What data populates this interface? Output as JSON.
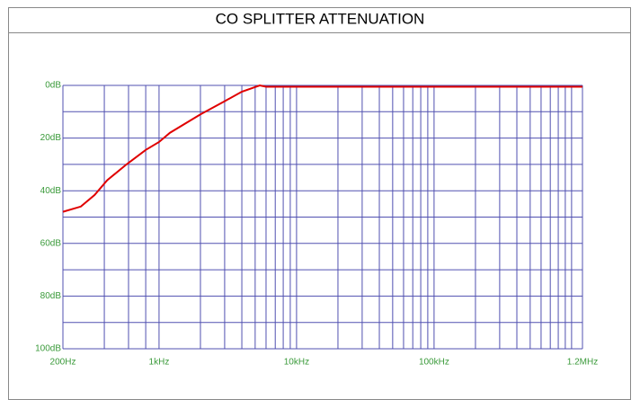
{
  "chart_data": {
    "type": "line",
    "title": "CO SPLITTER ATTENUATION",
    "x": [
      200,
      270,
      340,
      420,
      580,
      800,
      1000,
      1200,
      2000,
      3000,
      4000,
      5400,
      6000,
      1200000
    ],
    "series": [
      {
        "color": "#e00000",
        "values": [
          48,
          46,
          41.6,
          36,
          30,
          24.5,
          21.5,
          18,
          11,
          6,
          2.4,
          0,
          0.5,
          0.5
        ]
      }
    ],
    "x_log": true,
    "y_reversed": true,
    "grid": true,
    "grid_color": "#5050b0",
    "xlim": [
      200,
      1200000
    ],
    "xticks": [
      {
        "value": 200,
        "label": "200Hz"
      },
      {
        "value": 1000,
        "label": "1kHz"
      },
      {
        "value": 10000,
        "label": "10kHz"
      },
      {
        "value": 100000,
        "label": "100kHz"
      },
      {
        "value": 1200000,
        "label": "1.2MHz"
      }
    ],
    "xminor": [
      400,
      600,
      800,
      2000,
      3000,
      4000,
      5000,
      6000,
      7000,
      8000,
      9000,
      20000,
      30000,
      40000,
      50000,
      60000,
      70000,
      80000,
      90000,
      200000,
      300000,
      400000,
      500000,
      600000,
      700000,
      800000,
      900000,
      1000000
    ],
    "ylim": [
      0,
      100
    ],
    "yticks": [
      {
        "value": 0,
        "label": "0dB"
      },
      {
        "value": 20,
        "label": "20dB"
      },
      {
        "value": 40,
        "label": "40dB"
      },
      {
        "value": 60,
        "label": "60dB"
      },
      {
        "value": 80,
        "label": "80dB"
      },
      {
        "value": 100,
        "label": "100dB"
      }
    ],
    "yminor": [
      10,
      30,
      50,
      70,
      90
    ]
  }
}
